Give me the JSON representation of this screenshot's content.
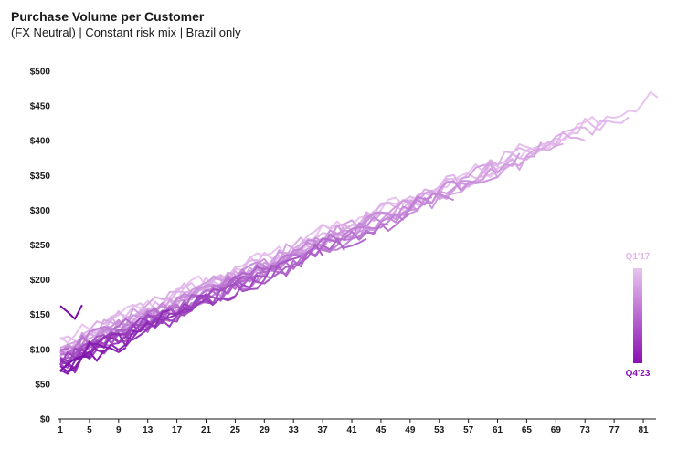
{
  "chart_data": {
    "type": "line",
    "title": "Purchase Volume per Customer",
    "subtitle": "(FX Neutral) | Constant risk mix | Brazil only",
    "xlabel": "",
    "ylabel": "",
    "x_ticks": [
      "1",
      "5",
      "9",
      "13",
      "17",
      "21",
      "25",
      "29",
      "33",
      "37",
      "41",
      "45",
      "49",
      "53",
      "57",
      "61",
      "65",
      "69",
      "73",
      "77",
      "81"
    ],
    "xlim": [
      1,
      83
    ],
    "y_ticks": [
      "$0",
      "$50",
      "$100",
      "$150",
      "$200",
      "$250",
      "$300",
      "$350",
      "$400",
      "$450",
      "$500"
    ],
    "ylim": [
      0,
      500
    ],
    "grid": false,
    "legend": {
      "top_label": "Q1'17",
      "bottom_label": "Q4'23",
      "top_color": "#e8c4ef",
      "bottom_color": "#8a10b3",
      "placement": "right"
    },
    "series_count": 28,
    "color_light": [
      232,
      196,
      239
    ],
    "color_dark": [
      122,
      10,
      168
    ],
    "series": [
      {
        "start": 110,
        "length": 83
      },
      {
        "start": 108,
        "length": 79
      },
      {
        "start": 106,
        "length": 76
      },
      {
        "start": 104,
        "length": 73
      },
      {
        "start": 103,
        "length": 70
      },
      {
        "start": 101,
        "length": 67
      },
      {
        "start": 100,
        "length": 64
      },
      {
        "start": 98,
        "length": 61
      },
      {
        "start": 97,
        "length": 58
      },
      {
        "start": 95,
        "length": 55
      },
      {
        "start": 94,
        "length": 52
      },
      {
        "start": 92,
        "length": 49
      },
      {
        "start": 91,
        "length": 46
      },
      {
        "start": 90,
        "length": 43
      },
      {
        "start": 88,
        "length": 40
      },
      {
        "start": 87,
        "length": 37
      },
      {
        "start": 86,
        "length": 34
      },
      {
        "start": 85,
        "length": 31
      },
      {
        "start": 84,
        "length": 28
      },
      {
        "start": 83,
        "length": 25
      },
      {
        "start": 82,
        "length": 22
      },
      {
        "start": 80,
        "length": 19
      },
      {
        "start": 79,
        "length": 16
      },
      {
        "start": 78,
        "length": 13
      },
      {
        "start": 76,
        "length": 10
      },
      {
        "start": 75,
        "length": 7
      },
      {
        "start": 74,
        "length": 5
      },
      {
        "start": 170,
        "length": 4
      }
    ]
  }
}
